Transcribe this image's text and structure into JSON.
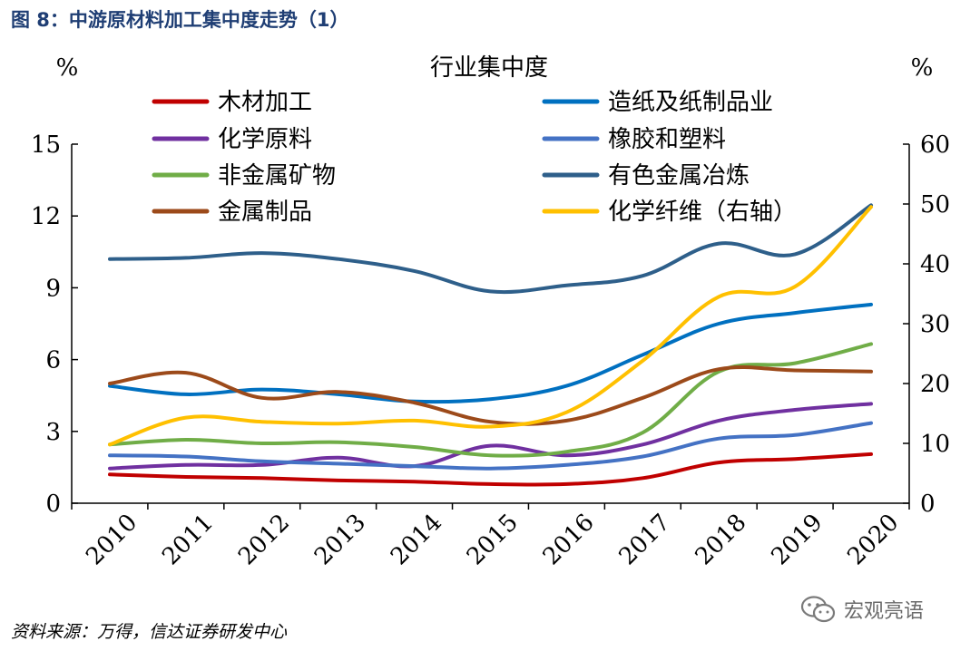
{
  "figure": {
    "title": "图 8：中游原材料加工集中度走势（1）",
    "source": "资料来源：万得，信达证券研发中心",
    "watermark": "宏观亮语"
  },
  "chart_data": {
    "type": "line",
    "title": "行业集中度",
    "ylabel_left": "%",
    "ylabel_right": "%",
    "x": [
      "2010",
      "2011",
      "2012",
      "2013",
      "2014",
      "2015",
      "2016",
      "2017",
      "2018",
      "2019",
      "2020"
    ],
    "y_left": {
      "range": [
        0,
        15
      ],
      "ticks": [
        "0",
        "3",
        "6",
        "9",
        "12",
        "15"
      ]
    },
    "y_right": {
      "range": [
        0,
        60
      ],
      "ticks": [
        "0",
        "10",
        "20",
        "30",
        "40",
        "50",
        "60"
      ]
    },
    "grid": false,
    "series": [
      {
        "name": "木材加工",
        "color": "#c00000",
        "axis": "left",
        "values": [
          1.2,
          1.1,
          1.05,
          0.95,
          0.9,
          0.8,
          0.8,
          1.05,
          1.7,
          1.85,
          2.05
        ]
      },
      {
        "name": "造纸及纸制品业",
        "color": "#0070c0",
        "axis": "left",
        "values": [
          4.9,
          4.55,
          4.75,
          4.55,
          4.25,
          4.35,
          4.9,
          6.2,
          7.5,
          7.95,
          8.3
        ]
      },
      {
        "name": "化学原料",
        "color": "#7030a0",
        "axis": "left",
        "values": [
          1.45,
          1.6,
          1.6,
          1.9,
          1.55,
          2.4,
          2.0,
          2.45,
          3.45,
          3.9,
          4.15
        ]
      },
      {
        "name": "橡胶和塑料",
        "color": "#4472c4",
        "axis": "left",
        "values": [
          2.0,
          1.95,
          1.75,
          1.65,
          1.55,
          1.45,
          1.6,
          1.95,
          2.7,
          2.85,
          3.35
        ]
      },
      {
        "name": "非金属矿物",
        "color": "#70ad47",
        "axis": "left",
        "values": [
          2.45,
          2.65,
          2.5,
          2.55,
          2.35,
          2.0,
          2.15,
          2.95,
          5.5,
          5.85,
          6.65
        ]
      },
      {
        "name": "有色金属冶炼",
        "color": "#2e5f8a",
        "axis": "left",
        "values": [
          10.2,
          10.25,
          10.45,
          10.2,
          9.7,
          8.85,
          9.1,
          9.5,
          10.85,
          10.4,
          12.45
        ]
      },
      {
        "name": "金属制品",
        "color": "#9c4a1a",
        "axis": "left",
        "values": [
          5.0,
          5.45,
          4.4,
          4.65,
          4.2,
          3.4,
          3.45,
          4.4,
          5.6,
          5.55,
          5.5
        ]
      },
      {
        "name": "化学纤维（右轴）",
        "color": "#ffc000",
        "axis": "right",
        "values": [
          9.8,
          14.3,
          13.6,
          13.3,
          13.8,
          12.8,
          15.2,
          23.8,
          34.5,
          36.2,
          49.5
        ]
      }
    ],
    "legend": "top, two columns"
  }
}
